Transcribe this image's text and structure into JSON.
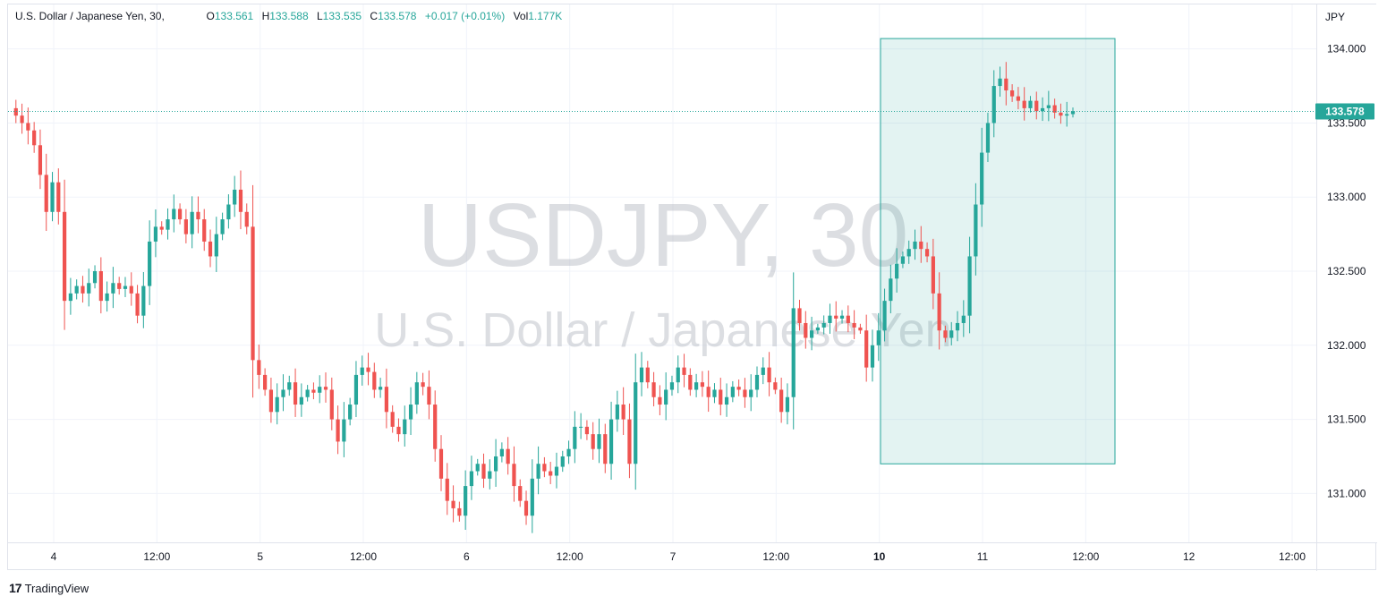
{
  "legend": {
    "symbol_name": "U.S. Dollar / Japanese Yen",
    "interval": "30",
    "open_label": "O",
    "open": "133.561",
    "high_label": "H",
    "high": "133.588",
    "low_label": "L",
    "low": "133.535",
    "close_label": "C",
    "close": "133.578",
    "change": "+0.017 (+0.01%)",
    "volume_label": "Vol",
    "volume": "1.177K"
  },
  "watermark": {
    "symbol": "USDJPY, 30",
    "description": "U.S. Dollar / Japanese Yen"
  },
  "footer": {
    "brand": "TradingView",
    "logo_glyph": "17"
  },
  "colors": {
    "up": "#26a69a",
    "down": "#ef5350",
    "box_fill": "#26a69a",
    "grid": "#f0f3fa",
    "price_badge": "#26a69a"
  },
  "chart_data": {
    "type": "candlestick",
    "currency_label": "JPY",
    "ylim": [
      130.67,
      134.3
    ],
    "y_ticks": [
      "131.000",
      "131.500",
      "132.000",
      "132.500",
      "133.000",
      "133.500",
      "134.000"
    ],
    "x_ticks": [
      {
        "label": "4",
        "bold": false
      },
      {
        "label": "12:00",
        "bold": false
      },
      {
        "label": "5",
        "bold": false
      },
      {
        "label": "12:00",
        "bold": false
      },
      {
        "label": "6",
        "bold": false
      },
      {
        "label": "12:00",
        "bold": false
      },
      {
        "label": "7",
        "bold": false
      },
      {
        "label": "12:00",
        "bold": false
      },
      {
        "label": "10",
        "bold": true
      },
      {
        "label": "11",
        "bold": false
      },
      {
        "label": "12:00",
        "bold": false
      },
      {
        "label": "12",
        "bold": false
      },
      {
        "label": "12:00",
        "bold": false
      }
    ],
    "last_price": "133.578",
    "highlight_box": {
      "price_top": 134.07,
      "price_bottom": 131.2
    },
    "closes": [
      133.6,
      133.55,
      133.5,
      133.45,
      133.35,
      133.15,
      132.9,
      133.1,
      132.9,
      132.3,
      132.35,
      132.4,
      132.35,
      132.42,
      132.5,
      132.3,
      132.35,
      132.42,
      132.38,
      132.4,
      132.35,
      132.2,
      132.4,
      132.7,
      132.8,
      132.78,
      132.85,
      132.92,
      132.85,
      132.75,
      132.9,
      132.85,
      132.7,
      132.6,
      132.75,
      132.85,
      132.95,
      133.05,
      132.9,
      132.8,
      131.9,
      131.8,
      131.7,
      131.55,
      131.65,
      131.7,
      131.75,
      131.6,
      131.65,
      131.7,
      131.68,
      131.72,
      131.7,
      131.5,
      131.35,
      131.5,
      131.6,
      131.8,
      131.85,
      131.82,
      131.7,
      131.72,
      131.55,
      131.45,
      131.4,
      131.5,
      131.6,
      131.75,
      131.72,
      131.6,
      131.3,
      131.1,
      130.95,
      130.9,
      130.85,
      131.05,
      131.15,
      131.2,
      131.1,
      131.15,
      131.25,
      131.3,
      131.2,
      131.05,
      130.95,
      130.85,
      131.1,
      131.2,
      131.15,
      131.12,
      131.18,
      131.25,
      131.3,
      131.45,
      131.45,
      131.4,
      131.3,
      131.4,
      131.2,
      131.5,
      131.6,
      131.5,
      131.2,
      131.75,
      131.85,
      131.75,
      131.65,
      131.6,
      131.7,
      131.75,
      131.85,
      131.8,
      131.7,
      131.75,
      131.72,
      131.65,
      131.7,
      131.6,
      131.65,
      131.72,
      131.7,
      131.65,
      131.7,
      131.8,
      131.85,
      131.75,
      131.7,
      131.55,
      131.65,
      132.25,
      132.15,
      132.05,
      132.1,
      132.12,
      132.15,
      132.2,
      132.18,
      132.2,
      132.15,
      132.12,
      132.1,
      131.85,
      132.0,
      132.1,
      132.3,
      132.45,
      132.55,
      132.6,
      132.65,
      132.7,
      132.65,
      132.6,
      132.35,
      132.1,
      132.05,
      132.1,
      132.15,
      132.2,
      132.6,
      132.95,
      133.3,
      133.5,
      133.75,
      133.8,
      133.72,
      133.68,
      133.65,
      133.6,
      133.65,
      133.58,
      133.6,
      133.62,
      133.57,
      133.55,
      133.56,
      133.58
    ]
  }
}
